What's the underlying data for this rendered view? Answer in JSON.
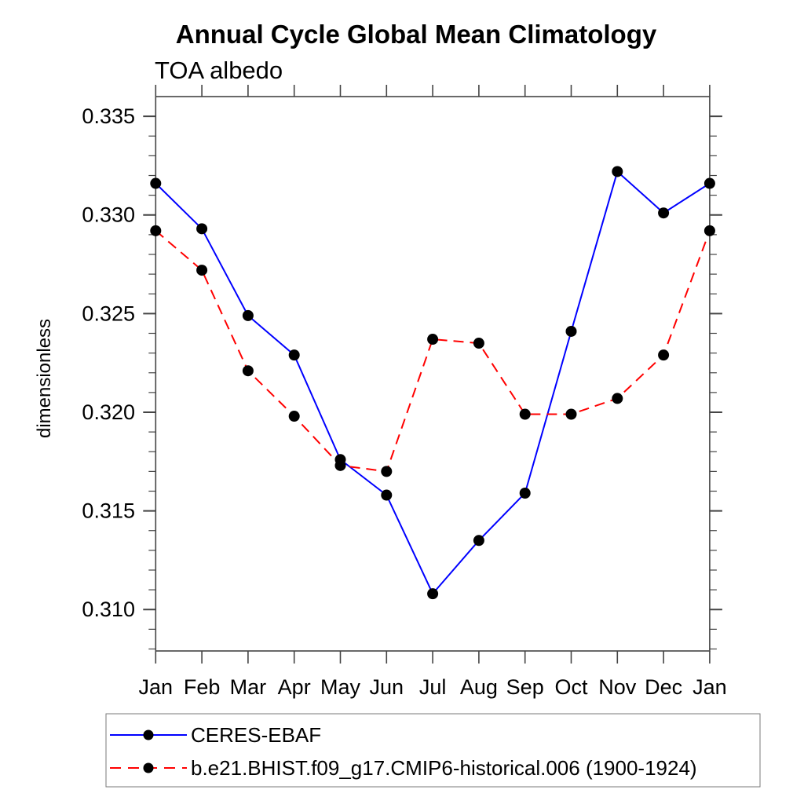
{
  "chart_data": {
    "type": "line",
    "title": "Annual Cycle Global Mean Climatology",
    "subtitle": "TOA albedo",
    "ylabel": "dimensionless",
    "x_categories": [
      "Jan",
      "Feb",
      "Mar",
      "Apr",
      "May",
      "Jun",
      "Jul",
      "Aug",
      "Sep",
      "Oct",
      "Nov",
      "Dec",
      "Jan"
    ],
    "ylim": [
      0.3079,
      0.336
    ],
    "y_tick_values": [
      0.31,
      0.315,
      0.32,
      0.325,
      0.33,
      0.335
    ],
    "y_tick_labels": [
      "0.310",
      "0.315",
      "0.320",
      "0.325",
      "0.330",
      "0.335"
    ],
    "y_minor_step": 0.001,
    "grid": false,
    "legend_position": "bottom",
    "series": [
      {
        "name": "CERES-EBAF",
        "color": "#0000ff",
        "style": "solid",
        "marker": "circle",
        "marker_color": "#000000",
        "values": [
          0.3316,
          0.3293,
          0.3249,
          0.3229,
          0.3176,
          0.3158,
          0.3108,
          0.3135,
          0.3159,
          0.3241,
          0.3322,
          0.3301,
          0.3316
        ]
      },
      {
        "name": "b.e21.BHIST.f09_g17.CMIP6-historical.006 (1900-1924)",
        "color": "#ff0000",
        "style": "dashed",
        "marker": "circle",
        "marker_color": "#000000",
        "values": [
          0.3292,
          0.3272,
          0.3221,
          0.3198,
          0.3173,
          0.317,
          0.3237,
          0.3235,
          0.3199,
          0.3199,
          0.3207,
          0.3229,
          0.3292
        ]
      }
    ],
    "axis_color": "#444444",
    "legend_border_color": "#7a7a7a"
  }
}
